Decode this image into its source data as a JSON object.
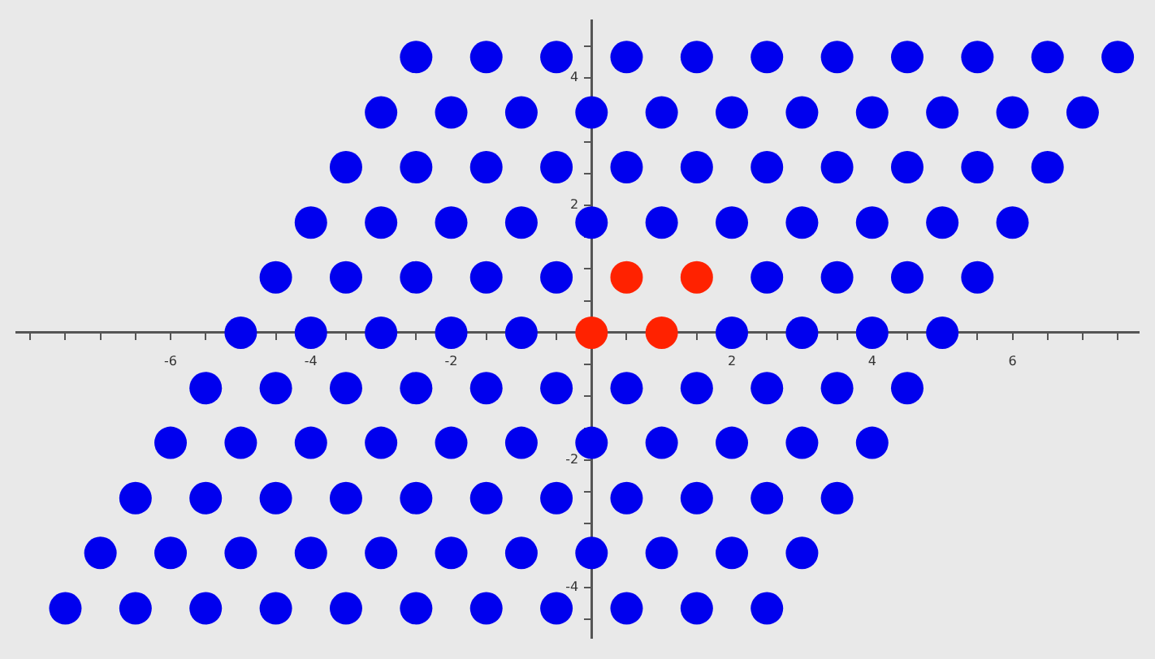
{
  "chart_data": {
    "type": "scatter",
    "marker": "circle",
    "grid": false,
    "legend": false,
    "xlim": [
      -8.2,
      7.8
    ],
    "ylim": [
      -4.8,
      4.9
    ],
    "xticks": [
      {
        "value": -8,
        "label": null
      },
      {
        "value": -7.5,
        "label": null
      },
      {
        "value": -7,
        "label": null
      },
      {
        "value": -6.5,
        "label": null
      },
      -6,
      {
        "value": -5.5,
        "label": null
      },
      {
        "value": -5,
        "label": null
      },
      {
        "value": -4.5,
        "label": null
      },
      -4,
      {
        "value": -3.5,
        "label": null
      },
      {
        "value": -3,
        "label": null
      },
      {
        "value": -2.5,
        "label": null
      },
      -2,
      {
        "value": -1.5,
        "label": null
      },
      {
        "value": -1,
        "label": null
      },
      {
        "value": -0.5,
        "label": null
      },
      {
        "value": 0.5,
        "label": null
      },
      {
        "value": 1,
        "label": null
      },
      {
        "value": 1.5,
        "label": null
      },
      2,
      {
        "value": 2.5,
        "label": null
      },
      {
        "value": 3,
        "label": null
      },
      {
        "value": 3.5,
        "label": null
      },
      4,
      {
        "value": 4.5,
        "label": null
      },
      {
        "value": 5,
        "label": null
      },
      {
        "value": 5.5,
        "label": null
      },
      6,
      {
        "value": 6.5,
        "label": null
      },
      {
        "value": 7,
        "label": null
      },
      {
        "value": 7.5,
        "label": null
      }
    ],
    "yticks": [
      {
        "value": -4.5,
        "label": null
      },
      -4,
      {
        "value": -3.5,
        "label": null
      },
      {
        "value": -3,
        "label": null
      },
      {
        "value": -2.5,
        "label": null
      },
      -2,
      {
        "value": -1.5,
        "label": null
      },
      {
        "value": -1,
        "label": null
      },
      {
        "value": -0.5,
        "label": null
      },
      {
        "value": 0.5,
        "label": null
      },
      {
        "value": 1,
        "label": null
      },
      {
        "value": 1.5,
        "label": null
      },
      2,
      {
        "value": 2.5,
        "label": null
      },
      {
        "value": 3,
        "label": null
      },
      {
        "value": 3.5,
        "label": null
      },
      4,
      {
        "value": 4.5,
        "label": null
      }
    ],
    "series": [
      {
        "color": "#0000ee",
        "x": [
          -2.5,
          -1.5,
          -0.5,
          0.5,
          1.5,
          2.5,
          3.5,
          4.5,
          5.5,
          6.5,
          7.5,
          -3,
          -2,
          -1,
          0,
          1,
          2,
          3,
          4,
          5,
          6,
          7,
          -3.5,
          -2.5,
          -1.5,
          -0.5,
          0.5,
          1.5,
          2.5,
          3.5,
          4.5,
          5.5,
          6.5,
          -4,
          -3,
          -2,
          -1,
          0,
          1,
          2,
          3,
          4,
          5,
          6,
          -4.5,
          -3.5,
          -2.5,
          -1.5,
          -0.5,
          2.5,
          3.5,
          4.5,
          5.5,
          -5,
          -4,
          -3,
          -2,
          -1,
          2,
          3,
          4,
          5,
          -5.5,
          -4.5,
          -3.5,
          -2.5,
          -1.5,
          -0.5,
          0.5,
          1.5,
          2.5,
          3.5,
          4.5,
          -6,
          -5,
          -4,
          -3,
          -2,
          -1,
          0,
          1,
          2,
          3,
          4,
          -6.5,
          -5.5,
          -4.5,
          -3.5,
          -2.5,
          -1.5,
          -0.5,
          0.5,
          1.5,
          2.5,
          3.5,
          -7,
          -6,
          -5,
          -4,
          -3,
          -2,
          -1,
          0,
          1,
          2,
          3,
          -7.5,
          -6.5,
          -5.5,
          -4.5,
          -3.5,
          -2.5,
          -1.5,
          -0.5,
          0.5,
          1.5,
          2.5
        ],
        "values": [
          4.33,
          4.33,
          4.33,
          4.33,
          4.33,
          4.33,
          4.33,
          4.33,
          4.33,
          4.33,
          4.33,
          3.46,
          3.46,
          3.46,
          3.46,
          3.46,
          3.46,
          3.46,
          3.46,
          3.46,
          3.46,
          3.46,
          2.6,
          2.6,
          2.6,
          2.6,
          2.6,
          2.6,
          2.6,
          2.6,
          2.6,
          2.6,
          2.6,
          1.73,
          1.73,
          1.73,
          1.73,
          1.73,
          1.73,
          1.73,
          1.73,
          1.73,
          1.73,
          1.73,
          0.87,
          0.87,
          0.87,
          0.87,
          0.87,
          0.87,
          0.87,
          0.87,
          0.87,
          0,
          0,
          0,
          0,
          0,
          0,
          0,
          0,
          0,
          -0.87,
          -0.87,
          -0.87,
          -0.87,
          -0.87,
          -0.87,
          -0.87,
          -0.87,
          -0.87,
          -0.87,
          -0.87,
          -1.73,
          -1.73,
          -1.73,
          -1.73,
          -1.73,
          -1.73,
          -1.73,
          -1.73,
          -1.73,
          -1.73,
          -1.73,
          -2.6,
          -2.6,
          -2.6,
          -2.6,
          -2.6,
          -2.6,
          -2.6,
          -2.6,
          -2.6,
          -2.6,
          -2.6,
          -3.46,
          -3.46,
          -3.46,
          -3.46,
          -3.46,
          -3.46,
          -3.46,
          -3.46,
          -3.46,
          -3.46,
          -3.46,
          -4.33,
          -4.33,
          -4.33,
          -4.33,
          -4.33,
          -4.33,
          -4.33,
          -4.33,
          -4.33,
          -4.33,
          -4.33
        ]
      },
      {
        "color": "#ff2200",
        "x": [
          0,
          1,
          0.5,
          1.5
        ],
        "values": [
          0,
          0,
          0.87,
          0.87
        ]
      }
    ]
  }
}
